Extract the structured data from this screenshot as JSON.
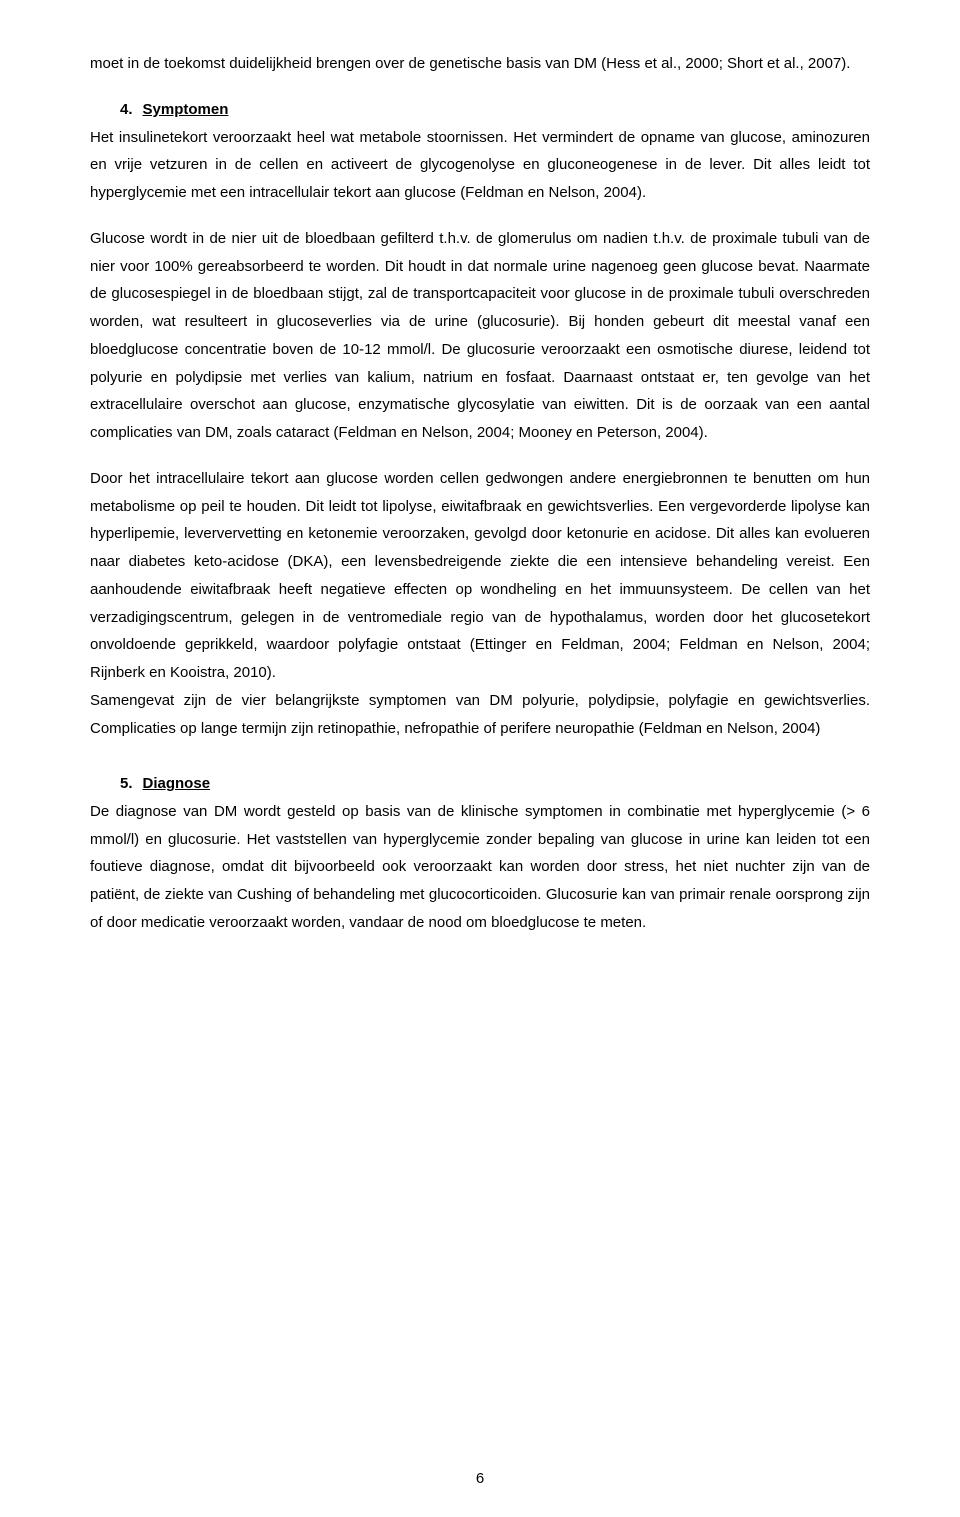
{
  "para1": "moet in de toekomst duidelijkheid brengen over de genetische basis van DM (Hess et al., 2000; Short et al., 2007).",
  "section4": {
    "number": "4.",
    "title": "Symptomen"
  },
  "para2": "Het insulinetekort veroorzaakt heel wat metabole stoornissen. Het vermindert de opname van glucose, aminozuren en vrije vetzuren in de cellen en activeert de glycogenolyse en gluconeogenese in de lever. Dit alles leidt tot hyperglycemie met een intracellulair tekort aan glucose (Feldman en Nelson, 2004).",
  "para3": "Glucose wordt in de nier uit de bloedbaan gefilterd t.h.v. de glomerulus om nadien t.h.v. de proximale tubuli van de nier voor 100% gereabsorbeerd te worden. Dit houdt in dat normale urine nagenoeg geen glucose bevat. Naarmate de glucosespiegel in de bloedbaan stijgt, zal de transportcapaciteit voor glucose in de proximale tubuli overschreden worden, wat resulteert in glucoseverlies via de urine (glucosurie). Bij honden gebeurt dit meestal vanaf een bloedglucose concentratie boven de 10-12 mmol/l. De glucosurie veroorzaakt een osmotische diurese, leidend tot polyurie en polydipsie met verlies van kalium, natrium en fosfaat. Daarnaast ontstaat er, ten gevolge van het extracellulaire overschot aan glucose, enzymatische glycosylatie van eiwitten. Dit is de oorzaak van een aantal complicaties van DM, zoals cataract (Feldman en Nelson, 2004; Mooney en Peterson, 2004).",
  "para4a": "Door het intracellulaire tekort aan glucose worden cellen gedwongen andere energiebronnen te benutten om hun metabolisme op peil te houden. Dit leidt tot lipolyse, eiwitafbraak en gewichtsverlies. Een vergevorderde lipolyse kan hyperlipemie, leververvetting en ketonemie veroorzaken, gevolgd door ketonurie en acidose. Dit alles kan evolueren naar diabetes keto-acidose (DKA), een levensbedreigende ziekte die een intensieve behandeling vereist. Een aanhoudende eiwitafbraak heeft negatieve effecten op wondheling en het immuunsysteem. De cellen van het verzadigingscentrum, gelegen in de ventromediale regio van de hypothalamus, worden door het glucosetekort onvoldoende geprikkeld, waardoor polyfagie ontstaat (Ettinger en Feldman, 2004; Feldman en Nelson, 2004; Rijnberk en Kooistra, 2010).",
  "para4b": "Samengevat zijn de vier belangrijkste symptomen van DM polyurie, polydipsie, polyfagie en gewichtsverlies. Complicaties op lange termijn zijn retinopathie, nefropathie of perifere neuropathie (Feldman en Nelson, 2004)",
  "section5": {
    "number": "5.",
    "title": "Diagnose"
  },
  "para5": "De diagnose van DM wordt gesteld op basis van de klinische symptomen in combinatie met hyperglycemie (> 6 mmol/l) en glucosurie. Het vaststellen van hyperglycemie zonder bepaling van glucose in urine kan leiden tot een foutieve diagnose, omdat dit bijvoorbeeld ook veroorzaakt kan worden door stress, het niet nuchter zijn van de patiënt, de ziekte van Cushing of behandeling met glucocorticoiden. Glucosurie kan van primair renale oorsprong zijn of door medicatie veroorzaakt worden, vandaar de nood om bloedglucose te meten.",
  "pageNumber": "6"
}
